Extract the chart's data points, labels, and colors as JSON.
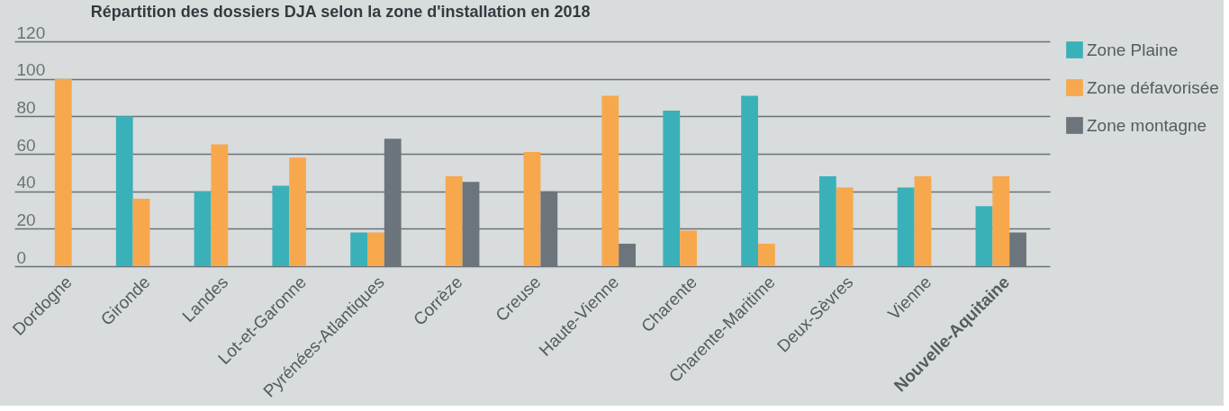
{
  "chart_data": {
    "type": "bar",
    "title": "Répartition des dossiers DJA selon la zone d'installation en 2018",
    "categories": [
      "Dordogne",
      "Gironde",
      "Landes",
      "Lot-et-Garonne",
      "Pyrénées-Atlantiques",
      "Corrèze",
      "Creuse",
      "Haute-Vienne",
      "Charente",
      "Charente-Maritime",
      "Deux-Sèvres",
      "Vienne",
      "Nouvelle-Aquitaine"
    ],
    "series": [
      {
        "name": "Zone Plaine",
        "color": "#3ab1b9",
        "values": [
          null,
          80,
          40,
          43,
          18,
          null,
          null,
          null,
          83,
          91,
          48,
          42,
          32
        ]
      },
      {
        "name": "Zone défavorisée",
        "color": "#f7a84d",
        "values": [
          100,
          36,
          65,
          58,
          18,
          48,
          61,
          91,
          19,
          12,
          42,
          48,
          48
        ]
      },
      {
        "name": "Zone montagne",
        "color": "#6c757b",
        "values": [
          null,
          null,
          null,
          null,
          68,
          45,
          40,
          12,
          null,
          null,
          null,
          null,
          18
        ]
      }
    ],
    "ylim": [
      0,
      120
    ],
    "yticks": [
      0,
      20,
      40,
      60,
      80,
      100,
      120
    ],
    "grid": "y",
    "legend": "top right"
  }
}
